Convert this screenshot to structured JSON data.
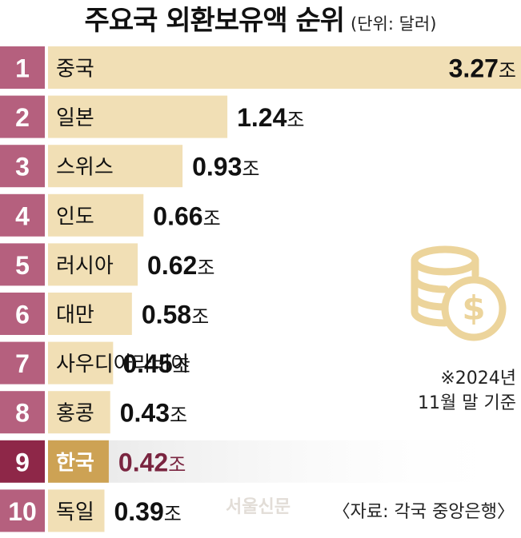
{
  "title": "주요국 외환보유액 순위",
  "unit_note": "(단위: 달러)",
  "note": {
    "line1": "※2024년",
    "line2": "11월 말 기준"
  },
  "source": "〈자료: 각국 중앙은행〉",
  "watermark": "서울신문",
  "colors": {
    "rank_bg": "#b5607e",
    "rank_bg_highlight": "#8e2748",
    "bar": "#f1dfb5",
    "bar_highlight": "#cda254",
    "value_highlight": "#7a2540",
    "icon": "#ecd49b"
  },
  "icon": "coins-dollar-icon",
  "chart_data": {
    "type": "bar",
    "orientation": "horizontal",
    "title": "주요국 외환보유액 순위",
    "unit": "(단위: 달러)",
    "value_suffix": "조",
    "xlim": [
      0,
      3.27
    ],
    "grid": false,
    "highlight": "한국",
    "ranks": [
      "1",
      "2",
      "3",
      "4",
      "5",
      "6",
      "7",
      "8",
      "9",
      "10"
    ],
    "categories": [
      "중국",
      "일본",
      "스위스",
      "인도",
      "러시아",
      "대만",
      "사우디아라비아",
      "홍콩",
      "한국",
      "독일"
    ],
    "labels": [
      "3.27",
      "1.24",
      "0.93",
      "0.66",
      "0.62",
      "0.58",
      "0.45",
      "0.43",
      "0.42",
      "0.39"
    ],
    "values": [
      3.27,
      1.24,
      0.93,
      0.66,
      0.62,
      0.58,
      0.45,
      0.43,
      0.42,
      0.39
    ]
  }
}
